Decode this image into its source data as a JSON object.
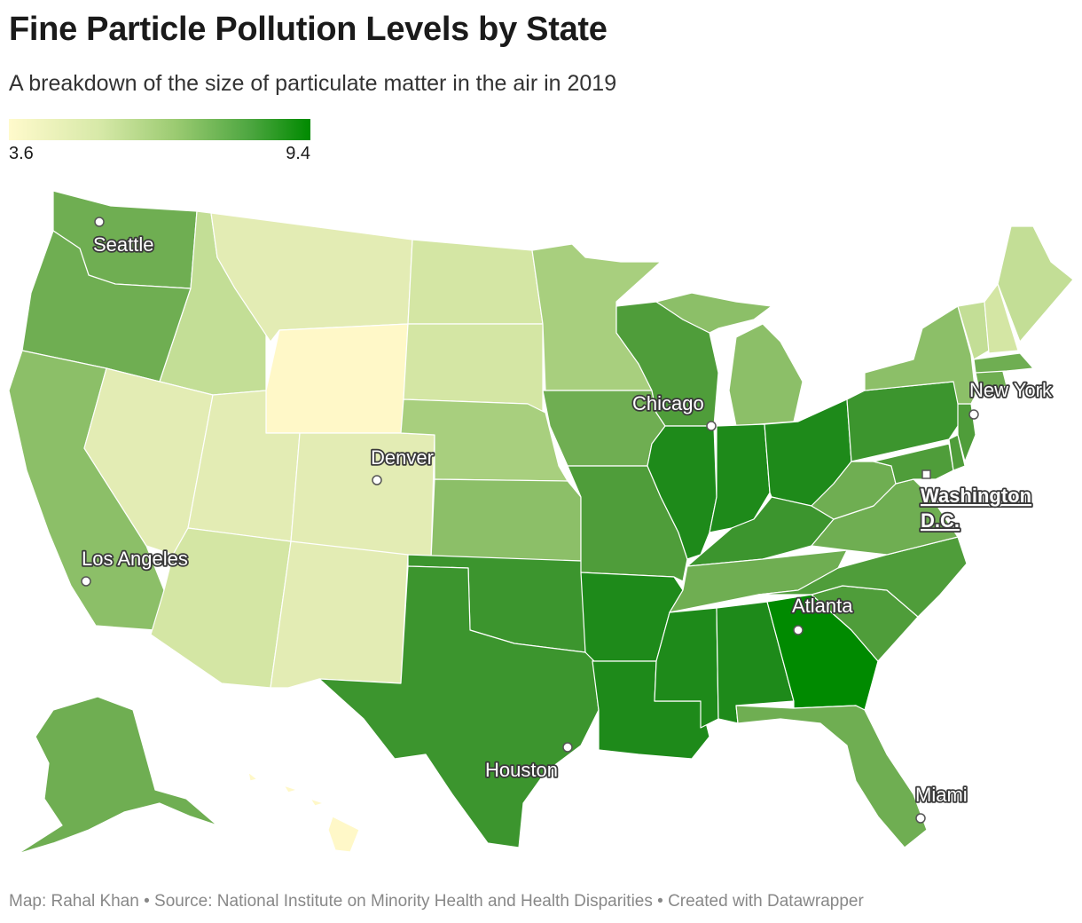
{
  "title": "Fine Particle Pollution Levels by State",
  "subtitle": "A breakdown of the size of particulate matter in the air in 2019",
  "legend": {
    "min": "3.6",
    "max": "9.4"
  },
  "colors": {
    "c1": "#fff8c8",
    "c2": "#e3ecb4",
    "c3": "#d4e6a4",
    "c4": "#c3de96",
    "c5": "#a8cf7e",
    "c6": "#8cbf68",
    "c7": "#6fae52",
    "c8": "#4f9d3a",
    "c9": "#3c952e",
    "c10": "#1e8a1a",
    "c11": "#008a00"
  },
  "cities": [
    {
      "name": "Seattle"
    },
    {
      "name": "Los Angeles"
    },
    {
      "name": "Denver"
    },
    {
      "name": "Chicago"
    },
    {
      "name": "New York"
    },
    {
      "name": "Washington"
    },
    {
      "name": "D.C."
    },
    {
      "name": "Atlanta"
    },
    {
      "name": "Houston"
    },
    {
      "name": "Miami"
    }
  ],
  "footer": "Map: Rahal Khan  • Source: National Institute on Minority Health and Health Disparities • Created with Datawrapper"
}
